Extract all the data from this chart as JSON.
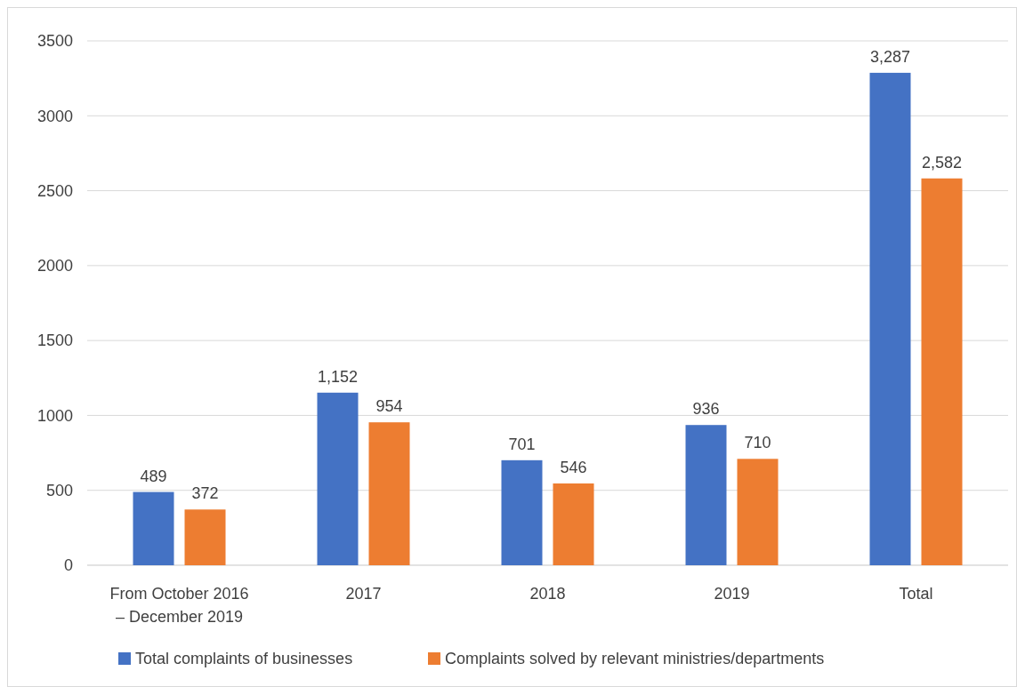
{
  "chart_data": {
    "type": "bar",
    "categories": [
      "From October 2016 – December 2019",
      "2017",
      "2018",
      "2019",
      "Total"
    ],
    "series": [
      {
        "name": "Total complaints of businesses",
        "color": "#4472c4",
        "values": [
          489,
          1152,
          701,
          936,
          3287
        ],
        "value_labels": [
          "489",
          "1,152",
          "701",
          "936",
          "3,287"
        ]
      },
      {
        "name": "Complaints solved by relevant ministries/departments",
        "color": "#ed7d31",
        "values": [
          372,
          954,
          546,
          710,
          2582
        ],
        "value_labels": [
          "372",
          "954",
          "546",
          "710",
          "2,582"
        ]
      }
    ],
    "ylim": [
      0,
      3500
    ],
    "yticks": [
      0,
      500,
      1000,
      1500,
      2000,
      2500,
      3000,
      3500
    ],
    "grid": "y",
    "legend": "bottom"
  }
}
